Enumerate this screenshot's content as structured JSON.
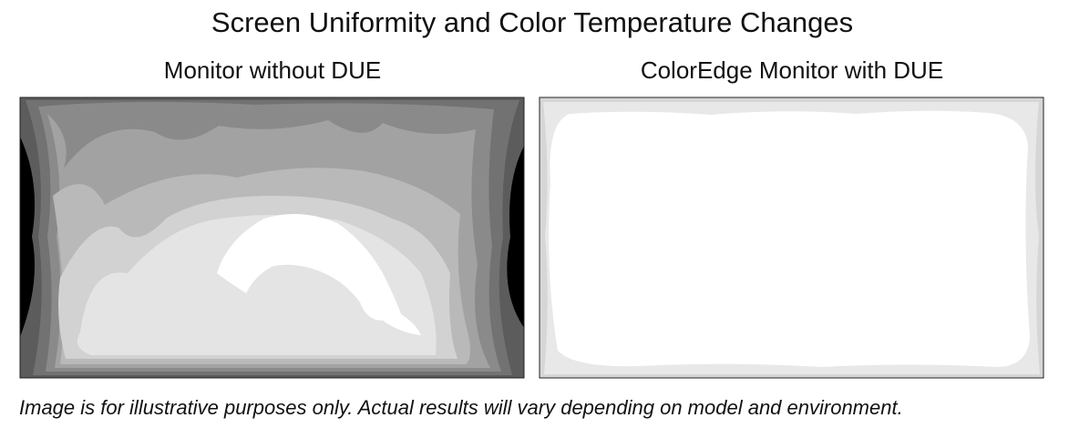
{
  "title": "Screen Uniformity and Color Temperature Changes",
  "panels": [
    {
      "label": "Monitor without DUE"
    },
    {
      "label": "ColorEdge Monitor with DUE"
    }
  ],
  "footnote": "Image is for illustrative purposes only. Actual results will vary depending on model and environment."
}
